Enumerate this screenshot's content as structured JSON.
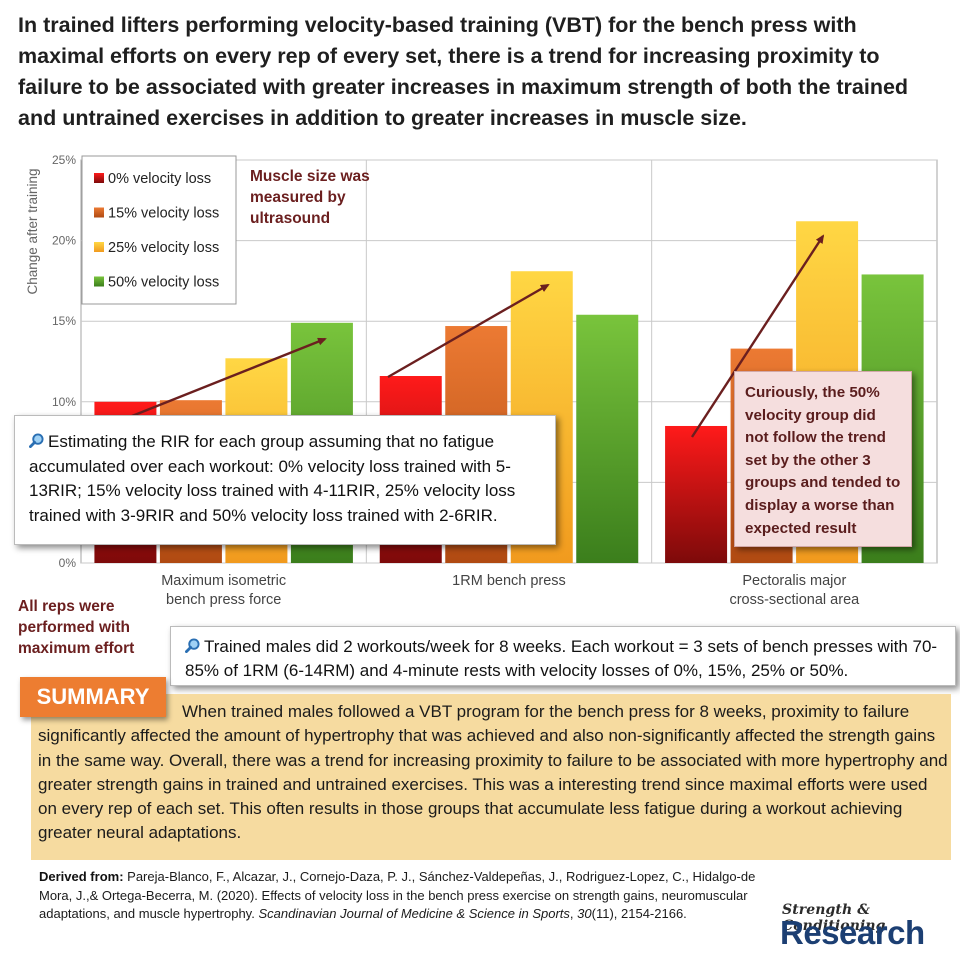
{
  "headline": "In trained lifters performing velocity-based training (VBT) for the bench press with maximal efforts on every rep of every set, there is a trend for increasing proximity to failure to be associated with greater increases in maximum strength of both the trained and untrained exercises in addition to greater increases in muscle size.",
  "chart_data": {
    "type": "bar",
    "categories": [
      "Maximum isometric\nbench press force",
      "1RM bench press",
      "Pectoralis major\ncross-sectional area"
    ],
    "series": [
      {
        "name": "0% velocity loss",
        "values": [
          10.0,
          11.6,
          8.5
        ]
      },
      {
        "name": "15% velocity loss",
        "values": [
          10.1,
          14.7,
          13.3
        ]
      },
      {
        "name": "25% velocity loss",
        "values": [
          12.7,
          18.1,
          21.2
        ]
      },
      {
        "name": "50% velocity loss",
        "values": [
          14.9,
          15.4,
          17.9
        ]
      }
    ],
    "ylabel": "Change after training",
    "ylim": [
      0,
      25
    ],
    "yticks": [
      "0%",
      "5%",
      "10%",
      "15%",
      "20%",
      "25%"
    ],
    "grid": true,
    "legend_position": "top-left",
    "colors": [
      "#c8101e",
      "#e0762c",
      "#f9c22e",
      "#6ab42f"
    ]
  },
  "notes": {
    "muscle_size": "Muscle size was measured by ultrasound",
    "rir": "Estimating the RIR for each group assuming that no fatigue accumulated over each workout: 0% velocity loss trained with 5-13RIR; 15% velocity loss trained with 4-11RIR, 25% velocity loss trained with 3-9RIR and 50% velocity loss trained with 2-6RIR.",
    "curious": "Curiously, the 50% velocity group did not follow the trend set by the other 3 groups and tended to display a worse than expected result",
    "reps": "All reps were performed with maximum effort",
    "training": "Trained males did 2 workouts/week for 8 weeks. Each workout = 3 sets of bench presses with 70-85% of 1RM (6-14RM) and 4-minute rests with velocity losses of 0%, 15%, 25% or 50%."
  },
  "summary": {
    "badge": "SUMMARY",
    "text": "When trained males followed a VBT program for the bench press for 8 weeks, proximity to failure significantly affected the amount of hypertrophy that was achieved and also non-significantly affected the strength gains in the same way. Overall, there was a trend for increasing proximity to failure to be associated with more hypertrophy and greater strength gains in trained and untrained exercises. This was a interesting trend since maximal efforts were used on every rep of each set. This often results in those groups that accumulate less fatigue during a workout achieving greater neural adaptations."
  },
  "citation": {
    "label": "Derived from:",
    "authors": "Pareja-Blanco, F., Alcazar, J., Cornejo-Daza, P. J., Sánchez-Valdepeñas, J., Rodriguez-Lopez, C., Hidalgo-de Mora, J.,& Ortega-Becerra, M. (2020). Effects of velocity loss in the bench press exercise on strength gains, neuromuscular adaptations, and muscle hypertrophy. ",
    "journal": "Scandinavian Journal of Medicine & Science in Sports",
    "volume": "30",
    "pages": "(11), 2154-2166."
  },
  "brand": {
    "top": "Strength & Conditioning",
    "bottom": "Research"
  }
}
